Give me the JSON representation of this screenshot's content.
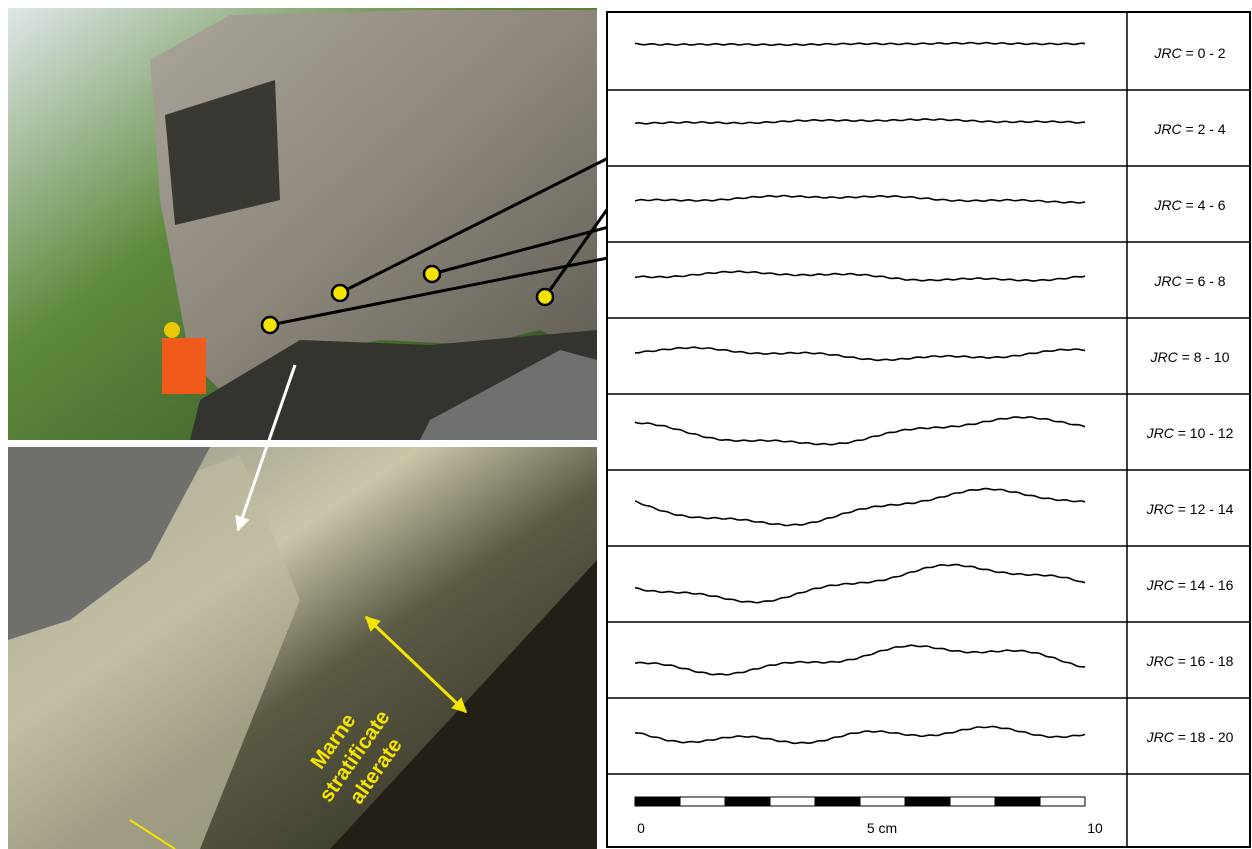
{
  "photo_annotation": {
    "lines": [
      "Marne",
      "stratificate",
      "alterate"
    ]
  },
  "jrc_table": {
    "rows": [
      {
        "symbol": "JRC",
        "range": "= 0 - 2"
      },
      {
        "symbol": "JRC",
        "range": "= 2 - 4"
      },
      {
        "symbol": "JRC",
        "range": "= 4 - 6"
      },
      {
        "symbol": "JRC",
        "range": "= 6 - 8"
      },
      {
        "symbol": "JRC",
        "range": "= 8 - 10"
      },
      {
        "symbol": "JRC",
        "range": "= 10 - 12"
      },
      {
        "symbol": "JRC",
        "range": "= 12 - 14"
      },
      {
        "symbol": "JRC",
        "range": "= 14 - 16"
      },
      {
        "symbol": "JRC",
        "range": "= 16 - 18"
      },
      {
        "symbol": "JRC",
        "range": "= 18 - 20"
      }
    ]
  },
  "scale_bar": {
    "labels": [
      "0",
      "5 cm",
      "10"
    ]
  }
}
